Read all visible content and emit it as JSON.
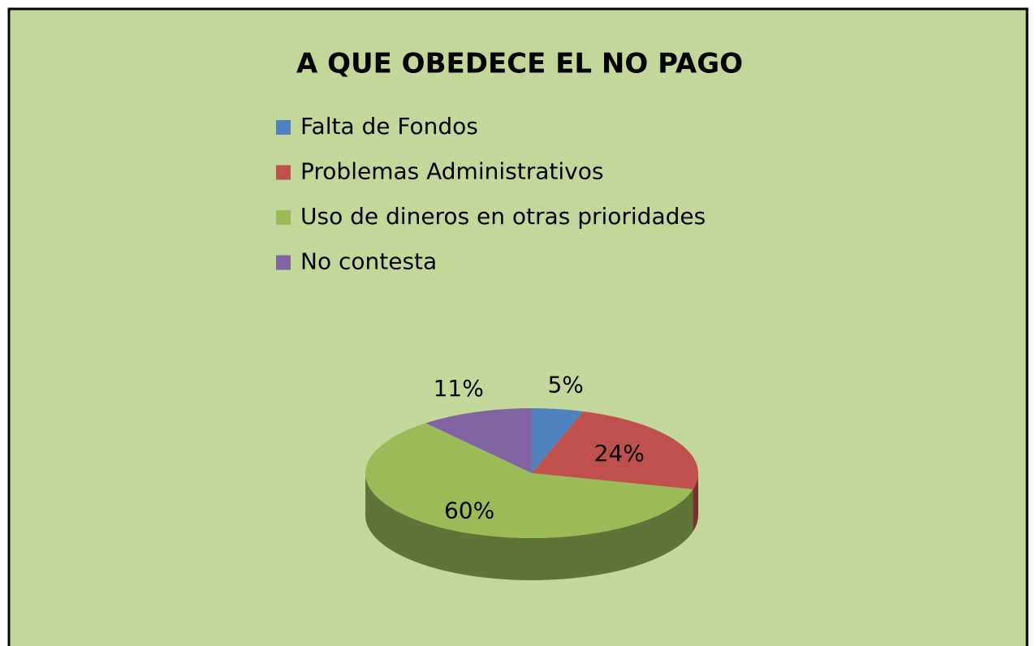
{
  "chart_data": {
    "type": "pie",
    "title": "A QUE OBEDECE EL NO PAGO",
    "categories": [
      "Falta de Fondos",
      "Problemas Administrativos",
      "Uso de dineros en otras prioridades",
      "No contesta"
    ],
    "values": [
      5,
      24,
      60,
      11
    ],
    "value_labels": [
      "5%",
      "24%",
      "60%",
      "11%"
    ],
    "colors": [
      "#4f81bd",
      "#c0504d",
      "#9bbb59",
      "#8064a2"
    ]
  }
}
